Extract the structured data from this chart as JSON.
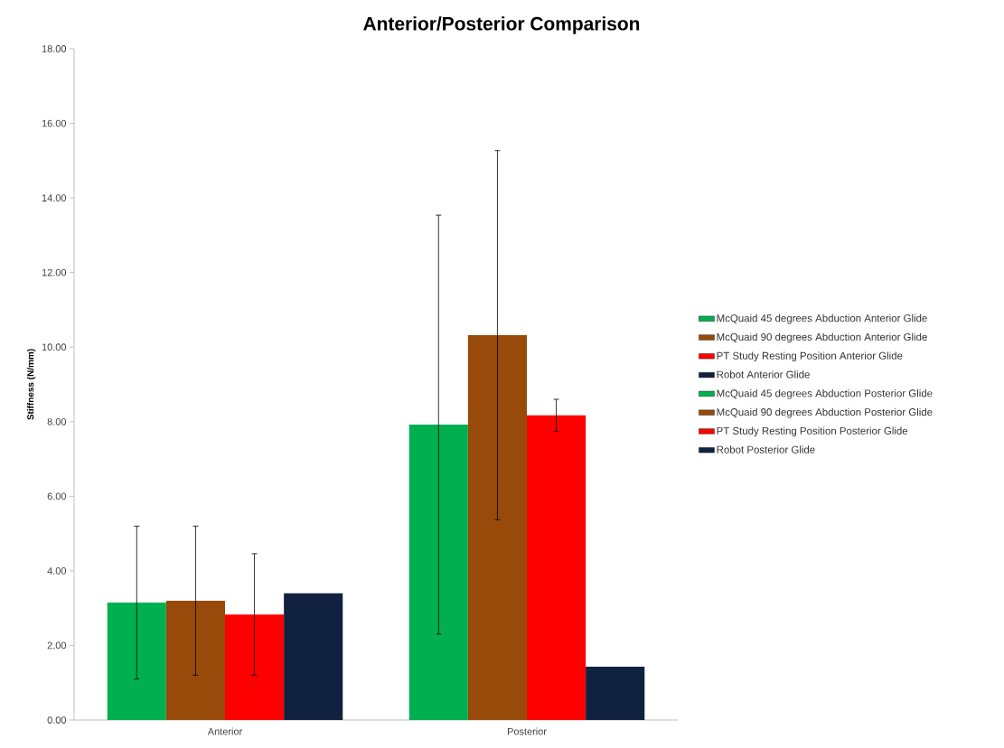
{
  "chart_data": {
    "type": "bar",
    "title": "Anterior/Posterior Comparison",
    "ylabel": "Stiffness (N/mm)",
    "categories": [
      "Anterior",
      "Posterior"
    ],
    "series": [
      {
        "name": "McQuaid 45 degrees Abduction Anterior Glide",
        "color": "#00b050",
        "values": [
          3.15,
          null
        ],
        "errors": [
          2.05,
          null
        ]
      },
      {
        "name": "McQuaid 90 degrees Abduction Anterior Glide",
        "color": "#974a0a",
        "values": [
          3.2,
          null
        ],
        "errors": [
          2.0,
          null
        ]
      },
      {
        "name": "PT Study Resting Position Anterior Glide",
        "color": "#ff0000",
        "values": [
          2.83,
          null
        ],
        "errors": [
          1.63,
          null
        ]
      },
      {
        "name": "Robot Anterior Glide",
        "color": "#112240",
        "values": [
          3.4,
          null
        ]
      },
      {
        "name": "McQuaid 45 degrees Abduction Posterior Glide",
        "color": "#00b050",
        "values": [
          null,
          7.92
        ],
        "errors": [
          null,
          5.62
        ]
      },
      {
        "name": "McQuaid 90 degrees Abduction Posterior Glide",
        "color": "#974a0a",
        "values": [
          null,
          10.32
        ],
        "errors": [
          null,
          4.95
        ]
      },
      {
        "name": "PT Study Resting Position Posterior Glide",
        "color": "#ff0000",
        "values": [
          null,
          8.17
        ],
        "errors": [
          null,
          0.43
        ]
      },
      {
        "name": "Robot Posterior Glide",
        "color": "#112240",
        "values": [
          null,
          1.43
        ]
      }
    ],
    "ylim": [
      0,
      18
    ],
    "yticks": [
      {
        "value": 0,
        "label": "0.00"
      },
      {
        "value": 2,
        "label": "2.00"
      },
      {
        "value": 4,
        "label": "4.00"
      },
      {
        "value": 6,
        "label": "6.00"
      },
      {
        "value": 8,
        "label": "8.00"
      },
      {
        "value": 10,
        "label": "10.00"
      },
      {
        "value": 12,
        "label": "12.00"
      },
      {
        "value": 14,
        "label": "14.00"
      },
      {
        "value": 16,
        "label": "16.00"
      },
      {
        "value": 18,
        "label": "18.00"
      }
    ],
    "legend": "right"
  }
}
